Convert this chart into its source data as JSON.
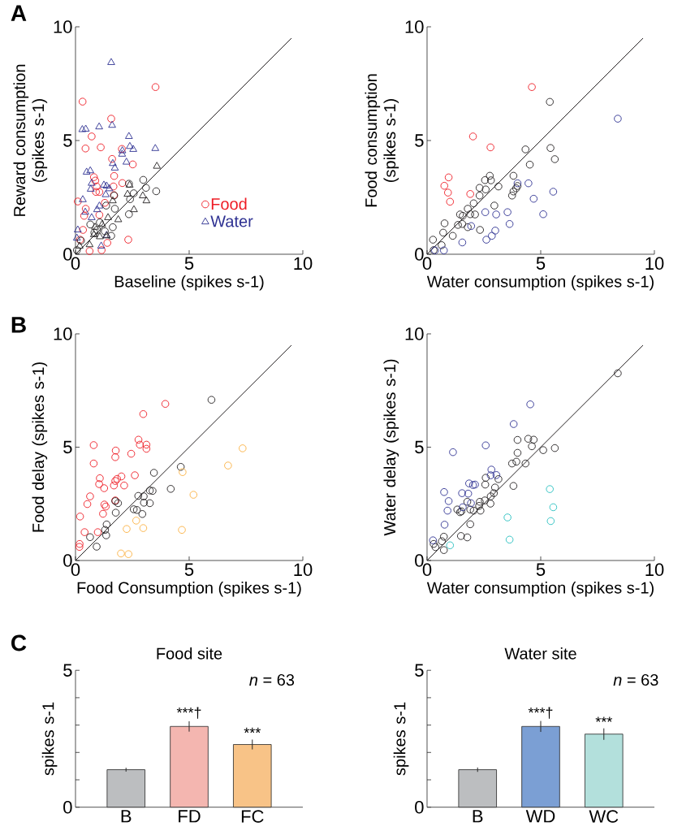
{
  "chart_data": [
    {
      "type": "scatter",
      "xlabel": "Baseline (spikes s-1)",
      "ylabel": "Reward consumption (spikes s-1)",
      "xlim": [
        0,
        10
      ],
      "ylim": [
        0,
        10
      ],
      "xticks": [
        0,
        5,
        10
      ],
      "yticks": [
        0,
        5,
        10
      ],
      "marker": "circle",
      "legend": "bottom right",
      "annotations": [
        "A"
      ],
      "series": [
        {
          "name": "Food",
          "color": "#ee1c25",
          "x": [
            3.52,
            0.31,
            1.57,
            0.71,
            0.44,
            1.11,
            2.04,
            1.61,
            2.52,
            1.7,
            0.81,
            0.87,
            2.06,
            1.67,
            0.93,
            0.9,
            1.05,
            1.69,
            0.1,
            1.29,
            0.45,
            0.38,
            1.05,
            0.33,
            0.2,
            1.4,
            2.32,
            0.62,
            1.15
          ],
          "values": [
            7.35,
            6.71,
            5.96,
            5.18,
            4.65,
            4.7,
            4.63,
            4.19,
            3.95,
            3.44,
            3.39,
            3.24,
            3.13,
            2.98,
            2.98,
            2.74,
            2.74,
            2.6,
            2.32,
            2.26,
            2.0,
            1.69,
            1.73,
            1.07,
            0.64,
            0.5,
            0.64,
            0.14,
            0.18
          ]
        },
        {
          "name": "Water",
          "color": "#2e3192",
          "marker": "triangle",
          "x": [
            1.57,
            0.3,
            0.45,
            1.04,
            1.61,
            2.35,
            2.39,
            2.54,
            3.51,
            2.06,
            2.05,
            2.24,
            1.64,
            1.73,
            0.49,
            0.65,
            0.71,
            0.67,
            1.25,
            1.37,
            1.49,
            1.33,
            0.32,
            1.05,
            0.95,
            0.43,
            0.71,
            0.1,
            0.06,
            1.13,
            1.37
          ],
          "values": [
            8.43,
            5.48,
            5.5,
            5.6,
            5.67,
            5.18,
            4.74,
            4.61,
            4.65,
            4.55,
            4.4,
            4.05,
            3.99,
            3.79,
            3.61,
            3.67,
            3.12,
            2.86,
            3.04,
            3.0,
            2.88,
            2.62,
            2.4,
            2.12,
            1.96,
            1.85,
            1.61,
            1.07,
            0.71,
            0.36,
            0.83
          ]
        },
        {
          "color": "#231f20",
          "x": [
            2.98,
            2.35,
            3.1,
            3.55,
            1.7,
            2.56,
            2.4,
            1.35,
            1.73,
            2.35,
            1.64,
            1.07,
            0.65,
            1.57,
            0.24,
            0.06,
            0.83,
            1.29,
            0.95
          ],
          "values": [
            3.27,
            3.1,
            2.92,
            2.77,
            2.58,
            2.68,
            2.42,
            2.14,
            2.0,
            1.76,
            1.19,
            1.4,
            1.31,
            0.81,
            0.6,
            0.18,
            0.95,
            1.01,
            1.07
          ]
        },
        {
          "color": "#231f20",
          "marker": "triangle",
          "x": [
            3.58,
            2.38,
            2.29,
            2.96,
            3.12,
            2.57,
            1.64,
            1.88,
            1.43,
            1.17,
            0.86,
            0.81,
            1.07,
            0.62,
            0.18,
            1.37
          ],
          "values": [
            3.87,
            3.04,
            2.64,
            2.57,
            2.35,
            1.96,
            2.35,
            1.52,
            1.61,
            1.31,
            1.19,
            0.86,
            0.77,
            0.42,
            0.36,
            0.81
          ]
        },
        {
          "type": "line",
          "color": "#231f20",
          "marker": "none",
          "x": [
            0,
            9.5
          ],
          "values": [
            0,
            9.5
          ]
        }
      ]
    },
    {
      "type": "scatter",
      "xlabel": "Water consumption (spikes s-1)",
      "ylabel": "Food consumption (spikes s-1)",
      "xlim": [
        0,
        10
      ],
      "ylim": [
        0,
        10
      ],
      "xticks": [
        0,
        5,
        10
      ],
      "yticks": [
        0,
        5,
        10
      ],
      "marker": "circle",
      "series": [
        {
          "color": "#ee1c25",
          "x": [
            4.61,
            2.02,
            2.79,
            0.95,
            0.76,
            0.92,
            1.01,
            1.9
          ],
          "values": [
            7.35,
            5.18,
            4.7,
            3.38,
            3.01,
            2.71,
            2.31,
            2.65
          ]
        },
        {
          "color": "#231f20",
          "x": [
            5.4,
            5.43,
            4.33,
            5.62,
            4.52,
            2.76,
            2.55,
            2.81,
            3.8,
            2.31,
            2.58,
            3.14,
            3.98,
            3.92,
            3.8,
            3.74,
            2.31,
            2.05,
            2.96,
            1.45,
            1.57,
            1.79,
            1.9,
            2.11,
            1.36,
            1.55,
            1.79,
            0.77,
            0.71,
            1.13,
            2.33,
            0.26,
            0.64,
            0.29
          ],
          "values": [
            6.7,
            4.67,
            4.61,
            4.18,
            3.94,
            3.45,
            3.26,
            3.25,
            3.45,
            2.92,
            2.85,
            2.98,
            3.0,
            2.9,
            2.76,
            2.58,
            2.58,
            2.24,
            2.14,
            1.75,
            1.69,
            2.0,
            1.76,
            1.75,
            1.29,
            1.33,
            1.19,
            1.36,
            0.95,
            0.81,
            1.07,
            0.64,
            0.4,
            0.18
          ]
        },
        {
          "color": "#2e3192",
          "x": [
            8.39,
            3.98,
            4.46,
            5.55,
            4.69,
            5.11,
            2.56,
            3.04,
            3.54,
            3.63,
            1.94,
            3.0,
            2.85,
            2.61,
            1.55,
            0.35,
            0.74
          ],
          "values": [
            5.96,
            3.12,
            3.12,
            2.75,
            2.44,
            1.76,
            1.85,
            1.75,
            1.85,
            1.33,
            1.24,
            1.04,
            0.81,
            0.64,
            0.52,
            0.17,
            0.17
          ]
        },
        {
          "type": "line",
          "color": "#231f20",
          "marker": "none",
          "x": [
            0,
            9.5
          ],
          "values": [
            0,
            9.5
          ]
        }
      ]
    },
    {
      "type": "scatter",
      "xlabel": "Food Consumption (spikes s-1)",
      "ylabel": "Food delay (spikes s-1)",
      "xlim": [
        0,
        10
      ],
      "ylim": [
        0,
        10
      ],
      "xticks": [
        0,
        5,
        10
      ],
      "yticks": [
        0,
        5,
        10
      ],
      "marker": "circle",
      "annotations": [
        "B"
      ],
      "series": [
        {
          "color": "#ee1c25",
          "x": [
            3.95,
            2.98,
            0.8,
            2.77,
            2.83,
            3.12,
            3.12,
            1.77,
            1.75,
            2.45,
            0.8,
            1.07,
            1.04,
            1.26,
            1.75,
            1.69,
            1.83,
            2.02,
            2.14,
            2.61,
            0.64,
            0.52,
            1.27,
            1.33,
            1.75,
            1.21,
            0.2,
            0.4,
            0.98,
            0.18,
            0.17
          ],
          "values": [
            6.91,
            6.46,
            5.09,
            5.33,
            5.11,
            5.11,
            4.93,
            4.85,
            4.56,
            4.71,
            4.28,
            3.63,
            3.37,
            3.19,
            3.51,
            3.31,
            3.6,
            3.71,
            3.31,
            3.76,
            2.83,
            2.49,
            2.47,
            2.38,
            2.65,
            2.06,
            1.94,
            1.25,
            1.25,
            0.73,
            0.6
          ]
        },
        {
          "color": "#231f20",
          "x": [
            5.98,
            4.63,
            3.45,
            4.19,
            3.27,
            3.39,
            2.76,
            3.0,
            3.01,
            3.27,
            1.87,
            1.75,
            2.56,
            2.7,
            2.94,
            1.77,
            1.37,
            1.3,
            1.35,
            0.64,
            0.93
          ],
          "values": [
            7.09,
            4.13,
            3.87,
            3.16,
            3.09,
            3.07,
            2.85,
            2.83,
            2.55,
            2.53,
            2.53,
            2.62,
            2.26,
            2.23,
            2.05,
            2.11,
            1.59,
            1.35,
            1.11,
            1.03,
            0.61
          ]
        },
        {
          "color": "#fbb040",
          "x": [
            7.35,
            6.71,
            4.71,
            5.19,
            2.67,
            2.25,
            2.98,
            4.68,
            2.0,
            2.33
          ],
          "values": [
            4.95,
            4.19,
            3.9,
            2.9,
            1.76,
            1.39,
            1.43,
            1.35,
            0.31,
            0.28
          ]
        },
        {
          "type": "line",
          "color": "#231f20",
          "marker": "none",
          "x": [
            0,
            9.5
          ],
          "values": [
            0,
            9.5
          ]
        }
      ]
    },
    {
      "type": "scatter",
      "xlabel": "Water consumption (spikes s-1)",
      "ylabel": "Water delay (spikes s-1)",
      "xlim": [
        0,
        10
      ],
      "ylim": [
        0,
        10
      ],
      "xticks": [
        0,
        5,
        10
      ],
      "yticks": [
        0,
        5,
        10
      ],
      "marker": "circle",
      "series": [
        {
          "color": "#231f20",
          "x": [
            8.39,
            4.69,
            4.45,
            3.98,
            4.61,
            5.11,
            5.62,
            3.98,
            4.33,
            3.74,
            3.93,
            3.8,
            2.58,
            2.56,
            3.14,
            2.99,
            2.94,
            2.8,
            2.54,
            2.79,
            2.32,
            2.29,
            2.35,
            2.05,
            1.77,
            1.9,
            1.33,
            1.51,
            1.45,
            1.9,
            1.49,
            1.77,
            0.74,
            0.65,
            0.74,
            0.37,
            0.29
          ],
          "values": [
            8.26,
            5.33,
            5.37,
            5.32,
            5.04,
            4.87,
            4.96,
            4.75,
            4.28,
            4.28,
            4.36,
            3.29,
            3.65,
            3.35,
            3.59,
            3.22,
            2.97,
            2.83,
            2.65,
            2.51,
            2.59,
            2.41,
            2.2,
            2.2,
            2.59,
            2.25,
            2.25,
            2.17,
            2.13,
            1.6,
            1.08,
            1.02,
            1.05,
            0.85,
            0.46,
            0.59,
            0.73
          ]
        },
        {
          "color": "#2e3192",
          "x": [
            4.54,
            3.81,
            2.58,
            1.14,
            2.83,
            2.8,
            3.05,
            1.85,
            2.02,
            2.11,
            0.75,
            1.54,
            1.81,
            0.95,
            1.93,
            0.9,
            1.57,
            0.77,
            0.26
          ],
          "values": [
            6.89,
            6.02,
            5.08,
            4.78,
            4.01,
            3.76,
            3.77,
            3.4,
            3.33,
            3.35,
            3.02,
            2.97,
            2.95,
            2.62,
            2.53,
            2.2,
            2.35,
            1.58,
            0.89
          ]
        },
        {
          "color": "#27c0c0",
          "x": [
            5.4,
            5.55,
            5.44,
            3.54,
            3.63,
            1.01
          ],
          "values": [
            3.15,
            2.35,
            1.74,
            1.9,
            0.92,
            0.67
          ]
        },
        {
          "type": "line",
          "color": "#231f20",
          "marker": "none",
          "x": [
            0,
            9.5
          ],
          "values": [
            0,
            9.5
          ]
        }
      ]
    },
    {
      "type": "bar",
      "title": "Food site",
      "ylabel": "spikes s-1",
      "categories": [
        "B",
        "FD",
        "FC"
      ],
      "values": [
        1.37,
        2.95,
        2.29
      ],
      "errors": [
        0.07,
        0.19,
        0.18
      ],
      "colors": [
        "#bcbec0",
        "#f4b6b0",
        "#f8c387"
      ],
      "ylim": [
        0,
        5
      ],
      "yticks": [
        0,
        {
          "value": 1,
          "label": null
        },
        {
          "value": 2,
          "label": null
        },
        {
          "value": 3,
          "label": null
        },
        {
          "value": 4,
          "label": null
        },
        5
      ],
      "annotations": [
        "C",
        "*n* = 63",
        {
          "text": "***†",
          "x": "FD",
          "y": 3.2
        },
        {
          "text": "***",
          "x": "FC",
          "y": 2.5
        }
      ]
    },
    {
      "type": "bar",
      "title": "Water site",
      "ylabel": "spikes s-1",
      "categories": [
        "B",
        "WD",
        "WC"
      ],
      "values": [
        1.37,
        2.95,
        2.67
      ],
      "errors": [
        0.08,
        0.2,
        0.21
      ],
      "colors": [
        "#bcbec0",
        "#7b9fd4",
        "#b3e0dc"
      ],
      "ylim": [
        0,
        5
      ],
      "yticks": [
        0,
        {
          "value": 1,
          "label": null
        },
        {
          "value": 2,
          "label": null
        },
        {
          "value": 3,
          "label": null
        },
        {
          "value": 4,
          "label": null
        },
        5
      ],
      "annotations": [
        "*n* = 63",
        {
          "text": "***†",
          "x": "WD",
          "y": 3.2
        },
        {
          "text": "***",
          "x": "WC",
          "y": 2.9
        }
      ]
    }
  ]
}
